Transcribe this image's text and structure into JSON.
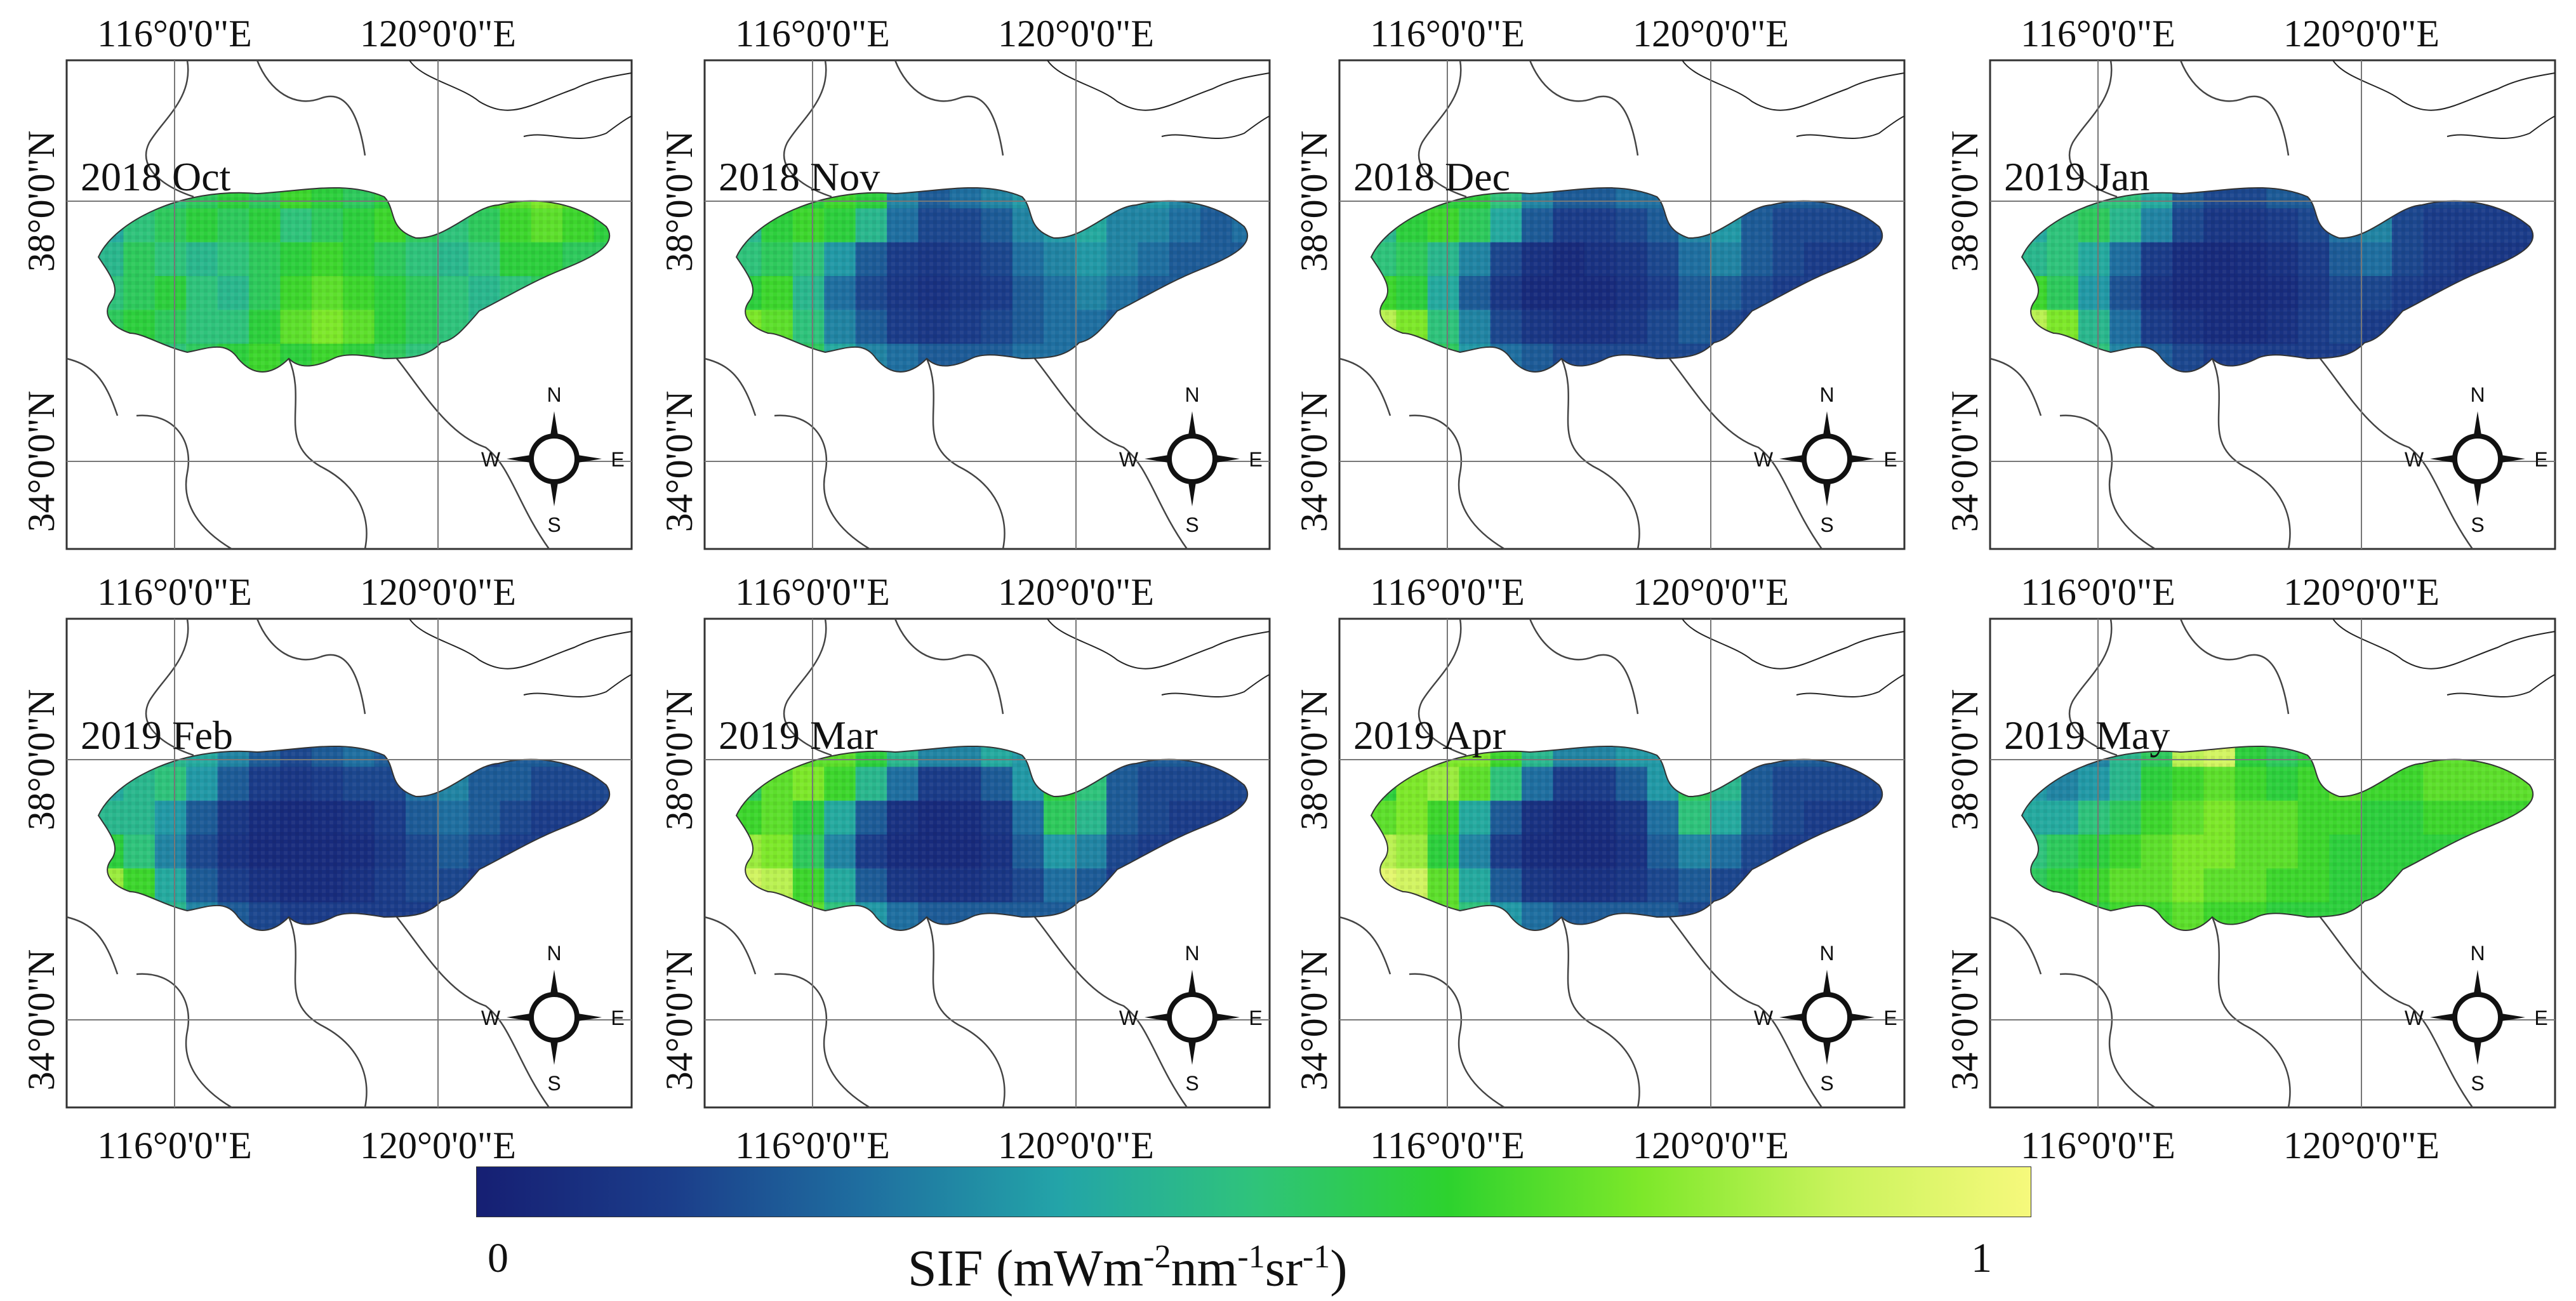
{
  "panels": [
    {
      "label": "2018 Oct",
      "pattern": [
        [
          0.45,
          0.55,
          0.5,
          0.55,
          0.6,
          0.55,
          0.65,
          0.6,
          0.55,
          0.6,
          0.55,
          0.6,
          0.65,
          0.7,
          0.75,
          0.7,
          0.65
        ],
        [
          0.4,
          0.5,
          0.55,
          0.6,
          0.55,
          0.6,
          0.5,
          0.55,
          0.6,
          0.65,
          0.55,
          0.5,
          0.55,
          0.65,
          0.7,
          0.65,
          0.6
        ],
        [
          0.45,
          0.55,
          0.5,
          0.45,
          0.5,
          0.55,
          0.6,
          0.65,
          0.6,
          0.55,
          0.5,
          0.45,
          0.5,
          0.6,
          0.6,
          0.55,
          0.55
        ],
        [
          0.5,
          0.55,
          0.6,
          0.5,
          0.45,
          0.55,
          0.65,
          0.7,
          0.65,
          0.6,
          0.55,
          0.5,
          0.45,
          0.5,
          0.55,
          0.5,
          0.5
        ],
        [
          0.55,
          0.6,
          0.55,
          0.5,
          0.5,
          0.6,
          0.7,
          0.75,
          0.7,
          0.6,
          0.55,
          0.5,
          0.45,
          0.45,
          0.5,
          0.5,
          0.45
        ],
        [
          0.5,
          0.55,
          0.5,
          0.55,
          0.6,
          0.65,
          0.6,
          0.65,
          0.6,
          0.55,
          0.5,
          0.45,
          0.5,
          0.5,
          0.45,
          0.45,
          0.45
        ]
      ]
    },
    {
      "label": "2018 Nov",
      "pattern": [
        [
          0.4,
          0.55,
          0.6,
          0.65,
          0.6,
          0.3,
          0.2,
          0.25,
          0.3,
          0.35,
          0.4,
          0.35,
          0.3,
          0.35,
          0.3,
          0.25,
          0.25
        ],
        [
          0.45,
          0.6,
          0.65,
          0.6,
          0.45,
          0.25,
          0.15,
          0.15,
          0.2,
          0.3,
          0.35,
          0.4,
          0.3,
          0.3,
          0.25,
          0.2,
          0.25
        ],
        [
          0.5,
          0.55,
          0.5,
          0.35,
          0.2,
          0.12,
          0.1,
          0.12,
          0.15,
          0.25,
          0.3,
          0.35,
          0.3,
          0.25,
          0.2,
          0.2,
          0.2
        ],
        [
          0.6,
          0.65,
          0.45,
          0.25,
          0.15,
          0.1,
          0.08,
          0.1,
          0.12,
          0.2,
          0.25,
          0.3,
          0.25,
          0.2,
          0.2,
          0.2,
          0.2
        ],
        [
          0.75,
          0.7,
          0.5,
          0.3,
          0.2,
          0.12,
          0.1,
          0.12,
          0.15,
          0.2,
          0.25,
          0.25,
          0.2,
          0.2,
          0.2,
          0.2,
          0.2
        ],
        [
          0.7,
          0.65,
          0.55,
          0.4,
          0.3,
          0.25,
          0.2,
          0.2,
          0.2,
          0.25,
          0.25,
          0.25,
          0.2,
          0.2,
          0.2,
          0.2,
          0.2
        ]
      ]
    },
    {
      "label": "2018 Dec",
      "pattern": [
        [
          0.4,
          0.55,
          0.6,
          0.6,
          0.5,
          0.3,
          0.2,
          0.2,
          0.25,
          0.25,
          0.3,
          0.25,
          0.2,
          0.2,
          0.2,
          0.15,
          0.15
        ],
        [
          0.45,
          0.6,
          0.65,
          0.55,
          0.4,
          0.2,
          0.12,
          0.12,
          0.15,
          0.2,
          0.3,
          0.35,
          0.2,
          0.15,
          0.15,
          0.15,
          0.15
        ],
        [
          0.5,
          0.55,
          0.45,
          0.3,
          0.15,
          0.08,
          0.05,
          0.08,
          0.1,
          0.15,
          0.25,
          0.3,
          0.2,
          0.15,
          0.12,
          0.12,
          0.12
        ],
        [
          0.65,
          0.6,
          0.4,
          0.2,
          0.1,
          0.05,
          0.05,
          0.05,
          0.08,
          0.12,
          0.2,
          0.2,
          0.15,
          0.12,
          0.12,
          0.12,
          0.12
        ],
        [
          0.85,
          0.75,
          0.5,
          0.3,
          0.15,
          0.1,
          0.08,
          0.08,
          0.1,
          0.15,
          0.2,
          0.15,
          0.12,
          0.12,
          0.12,
          0.12,
          0.12
        ],
        [
          0.8,
          0.7,
          0.55,
          0.35,
          0.25,
          0.2,
          0.15,
          0.15,
          0.15,
          0.15,
          0.15,
          0.15,
          0.12,
          0.12,
          0.12,
          0.12,
          0.12
        ]
      ]
    },
    {
      "label": "2019 Jan",
      "pattern": [
        [
          0.35,
          0.45,
          0.5,
          0.5,
          0.4,
          0.2,
          0.15,
          0.15,
          0.2,
          0.2,
          0.25,
          0.2,
          0.15,
          0.15,
          0.15,
          0.12,
          0.12
        ],
        [
          0.4,
          0.5,
          0.55,
          0.45,
          0.3,
          0.15,
          0.1,
          0.1,
          0.12,
          0.15,
          0.25,
          0.3,
          0.15,
          0.12,
          0.12,
          0.12,
          0.12
        ],
        [
          0.45,
          0.5,
          0.4,
          0.25,
          0.12,
          0.06,
          0.05,
          0.06,
          0.08,
          0.12,
          0.2,
          0.25,
          0.15,
          0.12,
          0.1,
          0.1,
          0.1
        ],
        [
          0.65,
          0.55,
          0.35,
          0.18,
          0.08,
          0.05,
          0.05,
          0.05,
          0.06,
          0.1,
          0.15,
          0.15,
          0.12,
          0.1,
          0.1,
          0.1,
          0.1
        ],
        [
          0.85,
          0.75,
          0.45,
          0.25,
          0.12,
          0.08,
          0.06,
          0.06,
          0.08,
          0.12,
          0.15,
          0.12,
          0.1,
          0.1,
          0.1,
          0.1,
          0.1
        ],
        [
          0.8,
          0.7,
          0.5,
          0.3,
          0.2,
          0.15,
          0.12,
          0.12,
          0.12,
          0.12,
          0.12,
          0.12,
          0.1,
          0.1,
          0.1,
          0.1,
          0.1
        ]
      ]
    },
    {
      "label": "2019 Feb",
      "pattern": [
        [
          0.35,
          0.4,
          0.45,
          0.4,
          0.3,
          0.2,
          0.15,
          0.2,
          0.25,
          0.2,
          0.2,
          0.2,
          0.15,
          0.2,
          0.2,
          0.15,
          0.15
        ],
        [
          0.4,
          0.45,
          0.5,
          0.35,
          0.2,
          0.12,
          0.1,
          0.12,
          0.15,
          0.15,
          0.25,
          0.3,
          0.2,
          0.2,
          0.15,
          0.15,
          0.15
        ],
        [
          0.45,
          0.45,
          0.35,
          0.2,
          0.1,
          0.06,
          0.05,
          0.06,
          0.08,
          0.12,
          0.2,
          0.25,
          0.2,
          0.15,
          0.12,
          0.12,
          0.12
        ],
        [
          0.6,
          0.5,
          0.3,
          0.15,
          0.08,
          0.05,
          0.05,
          0.05,
          0.06,
          0.1,
          0.15,
          0.2,
          0.15,
          0.12,
          0.12,
          0.12,
          0.12
        ],
        [
          0.8,
          0.65,
          0.4,
          0.2,
          0.12,
          0.08,
          0.06,
          0.06,
          0.08,
          0.12,
          0.15,
          0.15,
          0.12,
          0.12,
          0.12,
          0.12,
          0.12
        ],
        [
          0.75,
          0.6,
          0.45,
          0.3,
          0.2,
          0.15,
          0.12,
          0.12,
          0.12,
          0.12,
          0.12,
          0.12,
          0.12,
          0.12,
          0.12,
          0.12,
          0.12
        ]
      ]
    },
    {
      "label": "2019 Mar",
      "pattern": [
        [
          0.5,
          0.65,
          0.7,
          0.7,
          0.6,
          0.45,
          0.3,
          0.3,
          0.4,
          0.35,
          0.3,
          0.25,
          0.2,
          0.2,
          0.2,
          0.15,
          0.15
        ],
        [
          0.55,
          0.7,
          0.75,
          0.65,
          0.45,
          0.25,
          0.12,
          0.12,
          0.2,
          0.35,
          0.6,
          0.5,
          0.2,
          0.15,
          0.15,
          0.15,
          0.15
        ],
        [
          0.65,
          0.7,
          0.6,
          0.4,
          0.2,
          0.08,
          0.05,
          0.06,
          0.1,
          0.25,
          0.55,
          0.45,
          0.2,
          0.15,
          0.12,
          0.12,
          0.12
        ],
        [
          0.8,
          0.75,
          0.55,
          0.3,
          0.12,
          0.06,
          0.05,
          0.05,
          0.08,
          0.2,
          0.35,
          0.3,
          0.15,
          0.12,
          0.12,
          0.12,
          0.12
        ],
        [
          0.9,
          0.85,
          0.65,
          0.4,
          0.2,
          0.1,
          0.08,
          0.08,
          0.1,
          0.15,
          0.25,
          0.2,
          0.12,
          0.12,
          0.12,
          0.12,
          0.12
        ],
        [
          0.85,
          0.8,
          0.7,
          0.5,
          0.35,
          0.25,
          0.2,
          0.2,
          0.2,
          0.2,
          0.2,
          0.15,
          0.12,
          0.12,
          0.12,
          0.12,
          0.12
        ]
      ]
    },
    {
      "label": "2019 Apr",
      "pattern": [
        [
          0.55,
          0.7,
          0.75,
          0.75,
          0.65,
          0.45,
          0.3,
          0.3,
          0.35,
          0.35,
          0.3,
          0.25,
          0.2,
          0.2,
          0.2,
          0.15,
          0.15
        ],
        [
          0.6,
          0.75,
          0.8,
          0.7,
          0.5,
          0.25,
          0.12,
          0.12,
          0.2,
          0.35,
          0.55,
          0.45,
          0.2,
          0.15,
          0.15,
          0.15,
          0.15
        ],
        [
          0.7,
          0.75,
          0.65,
          0.4,
          0.2,
          0.08,
          0.05,
          0.06,
          0.1,
          0.25,
          0.5,
          0.4,
          0.2,
          0.15,
          0.12,
          0.12,
          0.12
        ],
        [
          0.85,
          0.8,
          0.6,
          0.3,
          0.12,
          0.06,
          0.05,
          0.05,
          0.08,
          0.2,
          0.3,
          0.25,
          0.15,
          0.12,
          0.12,
          0.12,
          0.12
        ],
        [
          0.95,
          0.9,
          0.7,
          0.4,
          0.2,
          0.1,
          0.08,
          0.08,
          0.1,
          0.15,
          0.2,
          0.15,
          0.12,
          0.12,
          0.12,
          0.12,
          0.12
        ],
        [
          0.9,
          0.85,
          0.7,
          0.5,
          0.35,
          0.25,
          0.2,
          0.2,
          0.2,
          0.2,
          0.15,
          0.15,
          0.12,
          0.12,
          0.12,
          0.12,
          0.12
        ]
      ]
    },
    {
      "label": "2019 May",
      "pattern": [
        [
          0.3,
          0.25,
          0.3,
          0.45,
          0.55,
          0.85,
          0.9,
          0.6,
          0.55,
          0.6,
          0.6,
          0.65,
          0.65,
          0.7,
          0.7,
          0.7,
          0.75
        ],
        [
          0.35,
          0.3,
          0.35,
          0.45,
          0.6,
          0.65,
          0.7,
          0.65,
          0.6,
          0.65,
          0.7,
          0.65,
          0.65,
          0.7,
          0.7,
          0.7,
          0.7
        ],
        [
          0.4,
          0.4,
          0.5,
          0.55,
          0.65,
          0.7,
          0.75,
          0.7,
          0.7,
          0.65,
          0.65,
          0.6,
          0.6,
          0.65,
          0.65,
          0.65,
          0.65
        ],
        [
          0.5,
          0.55,
          0.6,
          0.65,
          0.7,
          0.75,
          0.75,
          0.7,
          0.7,
          0.65,
          0.6,
          0.6,
          0.6,
          0.6,
          0.6,
          0.6,
          0.6
        ],
        [
          0.55,
          0.6,
          0.65,
          0.7,
          0.7,
          0.75,
          0.7,
          0.7,
          0.65,
          0.65,
          0.6,
          0.6,
          0.6,
          0.6,
          0.6,
          0.6,
          0.6
        ],
        [
          0.55,
          0.6,
          0.6,
          0.65,
          0.65,
          0.7,
          0.65,
          0.65,
          0.6,
          0.6,
          0.6,
          0.6,
          0.6,
          0.6,
          0.6,
          0.6,
          0.6
        ]
      ]
    }
  ],
  "axes": {
    "lon_label_left": "116°0'0\"E",
    "lon_label_right": "120°0'0\"E",
    "lat_label_top": "38°0'0\"N",
    "lat_label_bottom": "34°0'0\"N"
  },
  "compass": {
    "n": "N",
    "s": "S",
    "e": "E",
    "w": "W"
  },
  "colorbar": {
    "min_label": "0",
    "max_label": "1",
    "title_main": "SIF (mWm",
    "title_exp1": "-2",
    "title_mid1": "nm",
    "title_exp2": "-1",
    "title_mid2": "sr",
    "title_exp3": "-1",
    "title_end": ")",
    "colors": [
      "#161f73",
      "#1b3d8a",
      "#1f6fa0",
      "#23a4a8",
      "#2fc37b",
      "#2dd22e",
      "#7de82a",
      "#c9f35c",
      "#f6f97c"
    ]
  }
}
